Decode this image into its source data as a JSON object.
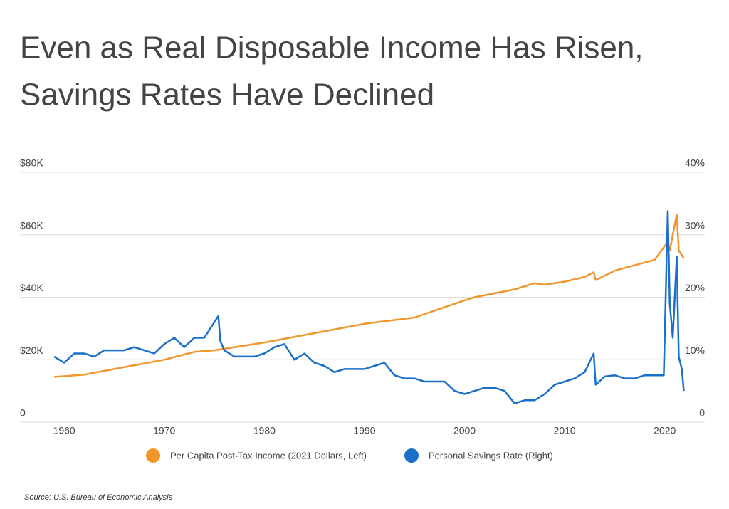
{
  "chart_data": {
    "type": "line",
    "title": [
      "Even as Real Disposable Income Has Risen,",
      "Savings Rates Have Declined"
    ],
    "source": "Source:  U.S. Bureau of Economic Analysis",
    "xlim": [
      1958,
      2024
    ],
    "xticks": [
      1960,
      1970,
      1980,
      1990,
      2000,
      2010,
      2020
    ],
    "ylim": [
      0,
      80000
    ],
    "yticks": [
      {
        "value": 0,
        "label": "0"
      },
      {
        "value": 20000,
        "label": "$20K"
      },
      {
        "value": 40000,
        "label": "$40K"
      },
      {
        "value": 60000,
        "label": "$60K"
      },
      {
        "value": 80000,
        "label": "$80K"
      }
    ],
    "y2lim": [
      0,
      40
    ],
    "y2ticks": [
      {
        "value": 0,
        "label": "0"
      },
      {
        "value": 10,
        "label": "10%"
      },
      {
        "value": 20,
        "label": "20%"
      },
      {
        "value": 30,
        "label": "30%"
      },
      {
        "value": 40,
        "label": "40%"
      }
    ],
    "grid": true,
    "series": [
      {
        "name": "Per Capita Post-Tax Income (2021 Dollars, Left)",
        "color": "#f0962a",
        "x": [
          1959,
          1960,
          1962,
          1965,
          1970,
          1973,
          1975,
          1980,
          1985,
          1990,
          1995,
          2000,
          2001,
          2005,
          2007,
          2008,
          2010,
          2012,
          2012.9,
          2013.1,
          2015,
          2019,
          2020.25,
          2020.5,
          2021.2,
          2021.4,
          2021.9
        ],
        "values": [
          14500,
          14700,
          15200,
          17000,
          20000,
          22500,
          23000,
          25500,
          28500,
          31500,
          33500,
          39000,
          40000,
          42500,
          44500,
          44000,
          45000,
          46500,
          48000,
          45500,
          48500,
          52000,
          57500,
          55000,
          66500,
          55000,
          52500
        ]
      },
      {
        "name": "Personal Savings Rate (Right)",
        "color": "#1a6fcb",
        "axis": "y2",
        "x": [
          1959,
          1960,
          1961,
          1962,
          1963,
          1964,
          1965,
          1966,
          1967,
          1968,
          1969,
          1970,
          1971,
          1972,
          1973,
          1974,
          1975.4,
          1975.6,
          1976,
          1977,
          1978,
          1979,
          1980,
          1981,
          1982,
          1983,
          1984,
          1985,
          1986,
          1987,
          1988,
          1989,
          1990,
          1991,
          1992,
          1993,
          1994,
          1995,
          1996,
          1997,
          1998,
          1999,
          2000,
          2001,
          2002,
          2003,
          2004,
          2005,
          2006,
          2007,
          2008,
          2009,
          2010,
          2011,
          2012,
          2012.9,
          2013.1,
          2014,
          2015,
          2016,
          2017,
          2018,
          2019,
          2019.9,
          2020.3,
          2020.5,
          2020.8,
          2021.2,
          2021.4,
          2021.7,
          2021.9
        ],
        "values": [
          10.5,
          9.5,
          11,
          11,
          10.5,
          11.5,
          11.5,
          11.5,
          12,
          11.5,
          11,
          12.5,
          13.5,
          12,
          13.5,
          13.5,
          17,
          13,
          11.5,
          10.5,
          10.5,
          10.5,
          11,
          12,
          12.5,
          10,
          11,
          9.5,
          9,
          8,
          8.5,
          8.5,
          8.5,
          9,
          9.5,
          7.5,
          7,
          7,
          6.5,
          6.5,
          6.5,
          5,
          4.5,
          5,
          5.5,
          5.5,
          5,
          3,
          3.5,
          3.5,
          4.5,
          6,
          6.5,
          7,
          8,
          11,
          6,
          7.3,
          7.5,
          7,
          7,
          7.5,
          7.5,
          7.5,
          33.8,
          19,
          13.5,
          26.5,
          10.5,
          8.5,
          5
        ]
      }
    ]
  }
}
